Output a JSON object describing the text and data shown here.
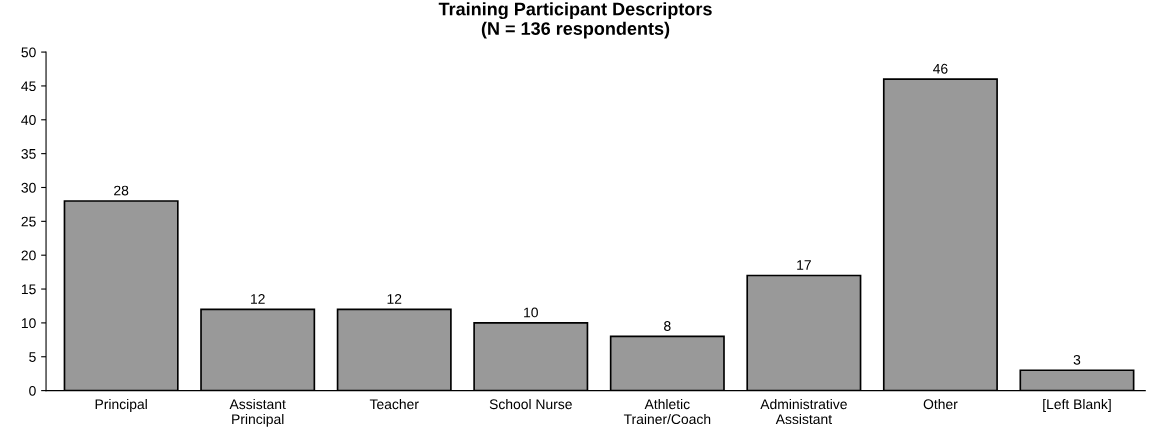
{
  "chart_data": {
    "type": "bar",
    "title": "Training Participant Descriptors\n(N = 136 respondents)",
    "categories": [
      "Principal",
      "Assistant\nPrincipal",
      "Teacher",
      "School Nurse",
      "Athletic\nTrainer/Coach",
      "Administrative\nAssistant",
      "Other",
      "[Left Blank]"
    ],
    "values": [
      28,
      12,
      12,
      10,
      8,
      17,
      46,
      3
    ],
    "color": "#999999",
    "ylim": [
      0,
      50
    ],
    "yticks": [
      0,
      5,
      10,
      15,
      20,
      25,
      30,
      35,
      40,
      45,
      50
    ],
    "data_labels": true,
    "grid": false
  }
}
